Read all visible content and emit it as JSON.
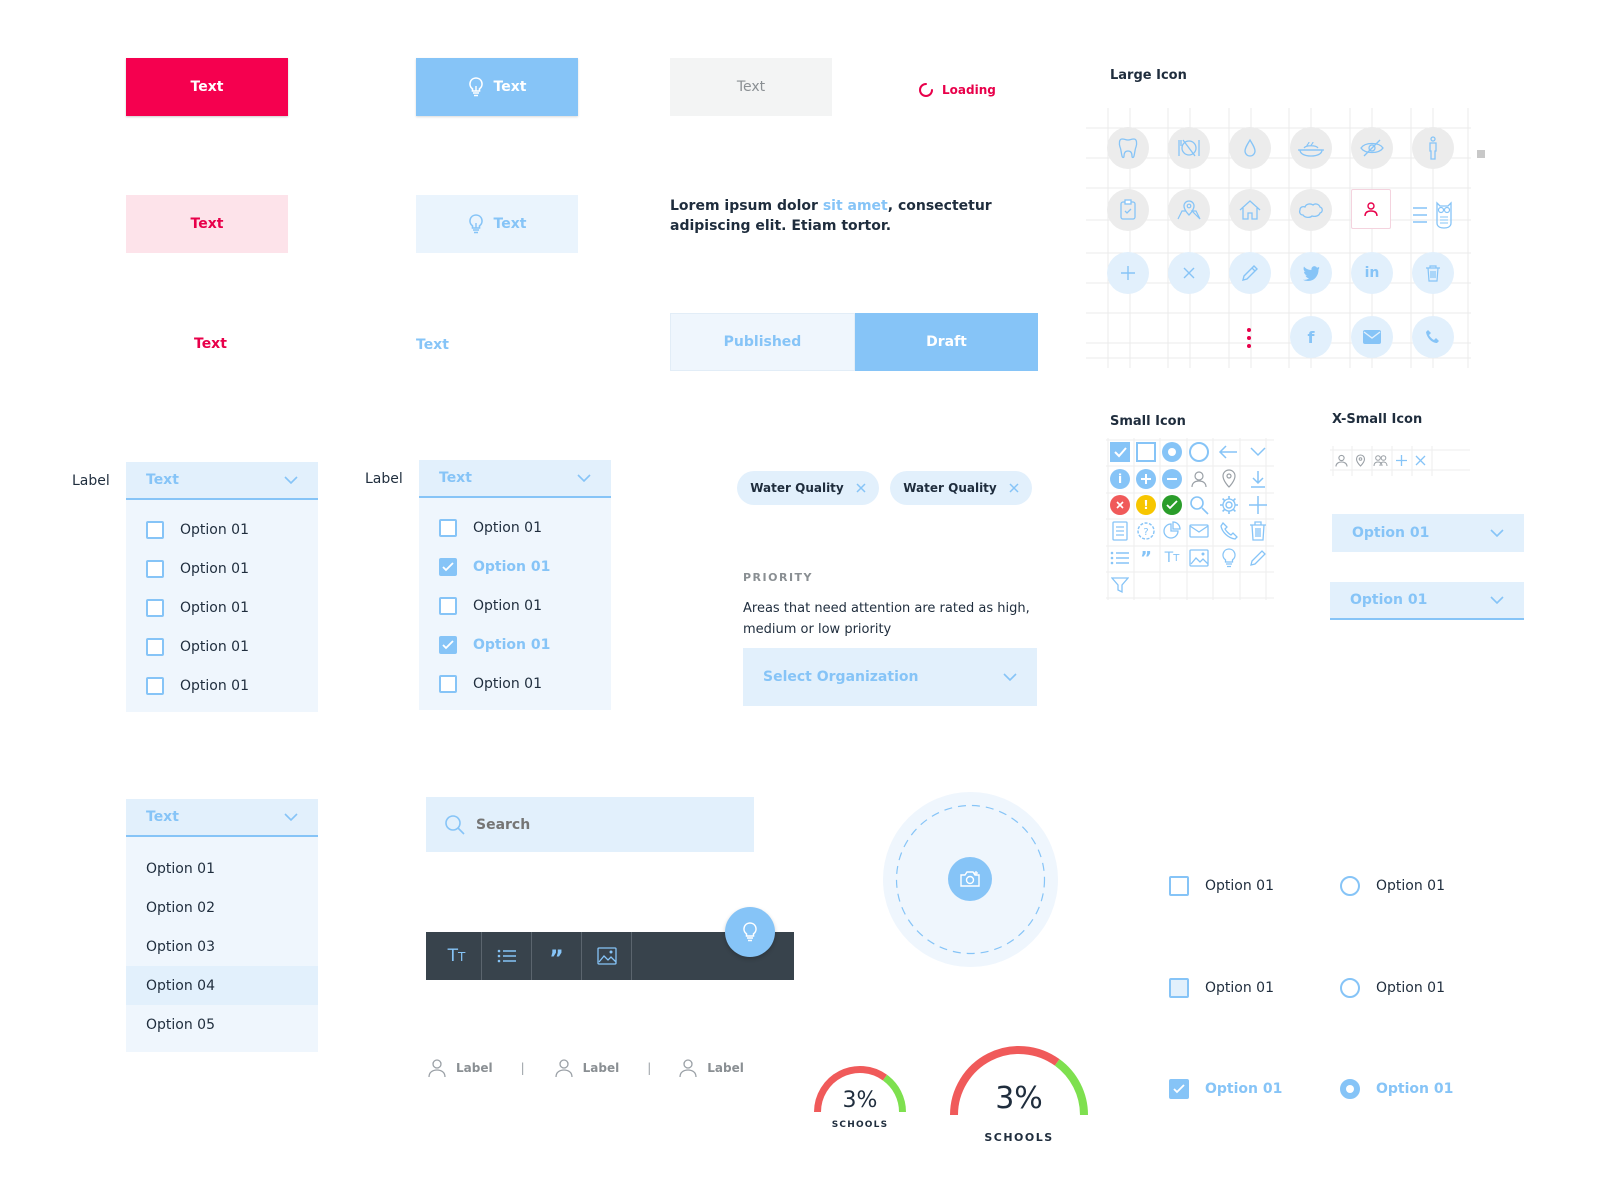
{
  "buttons": {
    "primary": "Text",
    "primary_icon": "Text",
    "disabled": "Text",
    "loading": "Loading",
    "secondary": "Text",
    "secondary_icon": "Text",
    "text_red": "Text",
    "text_blue": "Text"
  },
  "paragraph": {
    "part1": "Lorem ipsum dolor ",
    "link": "sit amet",
    "part2": ", consectetur",
    "line2": "adipiscing elit. Etiam tortor."
  },
  "segment": {
    "left": "Published",
    "right": "Draft"
  },
  "icons": {
    "large_title": "Large Icon",
    "small_title": "Small Icon",
    "xsmall_title": "X-Small Icon"
  },
  "dropdown1": {
    "label": "Label",
    "header": "Text",
    "items": [
      "Option 01",
      "Option 01",
      "Option 01",
      "Option 01",
      "Option 01"
    ]
  },
  "dropdown2": {
    "label": "Label",
    "header": "Text",
    "items": [
      {
        "text": "Option 01",
        "checked": false
      },
      {
        "text": "Option 01",
        "checked": true
      },
      {
        "text": "Option 01",
        "checked": false
      },
      {
        "text": "Option 01",
        "checked": true
      },
      {
        "text": "Option 01",
        "checked": false
      }
    ]
  },
  "chips": [
    "Water Quality",
    "Water Quality"
  ],
  "priority": {
    "title": "PRIORITY",
    "desc1": "Areas that need attention are rated as high,",
    "desc2": "medium or low priority",
    "select_placeholder": "Select Organization"
  },
  "right_selects": [
    "Option 01",
    "Option 01"
  ],
  "dropdown3": {
    "header": "Text",
    "items": [
      "Option 01",
      "Option 02",
      "Option 03",
      "Option 04",
      "Option 05"
    ]
  },
  "search": {
    "placeholder": "Search"
  },
  "labels": [
    "Label",
    "Label",
    "Label"
  ],
  "gauges": [
    {
      "value": "3%",
      "caption": "SCHOOLS",
      "fraction": 0.03
    },
    {
      "value": "3%",
      "caption": "SCHOOLS",
      "fraction": 0.03
    }
  ],
  "options_grid": {
    "checkbox": [
      "Option 01",
      "Option 01",
      "Option 01"
    ],
    "radio": [
      "Option 01",
      "Option 01",
      "Option 01"
    ]
  },
  "colors": {
    "accent": "#86c4f7",
    "brand_red": "#f5004f",
    "dark_toolbar": "#38434c",
    "gauge_red": "#f05a5a",
    "gauge_green": "#7ee04f"
  }
}
